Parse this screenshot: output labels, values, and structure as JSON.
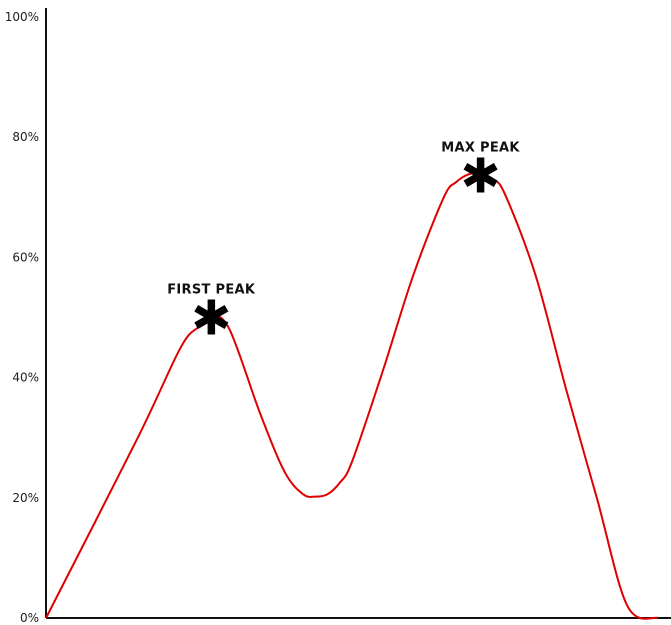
{
  "chart_data": {
    "type": "line",
    "title": "",
    "xlabel": "",
    "ylabel": "",
    "ylim": [
      0,
      100
    ],
    "yticks": [
      {
        "value": 0,
        "label": "0%"
      },
      {
        "value": 20,
        "label": "20%"
      },
      {
        "value": 40,
        "label": "40%"
      },
      {
        "value": 60,
        "label": "60%"
      },
      {
        "value": 80,
        "label": "80%"
      },
      {
        "value": 100,
        "label": "100%"
      }
    ],
    "xlim": [
      0,
      100
    ],
    "grid": false,
    "line_color": "#e00000",
    "series": [
      {
        "x": [
          0,
          15,
          22,
          25,
          27,
          30,
          35,
          39,
          42,
          44,
          46,
          48,
          50,
          55,
          60,
          65,
          67,
          69,
          71,
          73,
          75,
          80,
          85,
          90,
          95,
          100
        ],
        "y": [
          0,
          30,
          45,
          48.5,
          50.3,
          48,
          34,
          24.3,
          20.6,
          20.2,
          20.6,
          22.5,
          26,
          41,
          57,
          70,
          72.5,
          73.8,
          74,
          73,
          70.5,
          57,
          38,
          20,
          2,
          0
        ]
      }
    ],
    "annotations": [
      {
        "label": "FIRST PEAK",
        "marker": "✱",
        "x": 27,
        "y": 50.3
      },
      {
        "label": "MAX PEAK",
        "marker": "✱",
        "x": 71,
        "y": 74
      }
    ]
  }
}
